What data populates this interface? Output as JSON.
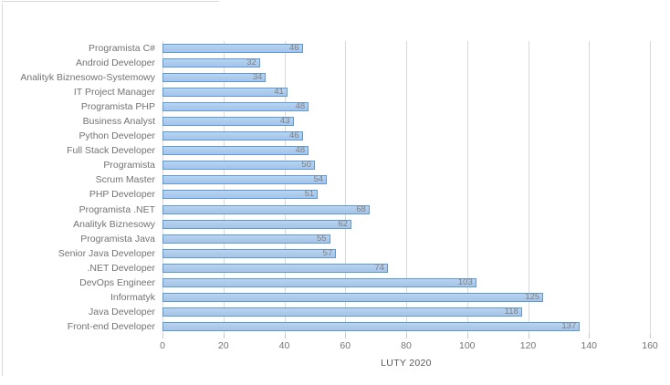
{
  "chart_data": {
    "type": "bar",
    "orientation": "horizontal",
    "title": "",
    "xlabel": "LUTY 2020",
    "ylabel": "",
    "xlim": [
      0,
      160
    ],
    "x_ticks": [
      0,
      20,
      40,
      60,
      80,
      100,
      120,
      140,
      160
    ],
    "grid": true,
    "data_labels_position": "inside-end",
    "categories_top_to_bottom": [
      "Programista C#",
      "Android Developer",
      "Analityk Biznesowo-Systemowy",
      "IT Project Manager",
      "Programista PHP",
      "Business Analyst",
      "Python Developer",
      "Full Stack Developer",
      "Programista",
      "Scrum Master",
      "PHP Developer",
      "Programista .NET",
      "Analityk Biznesowy",
      "Programista Java",
      "Senior Java Developer",
      ".NET Developer",
      "DevOps Engineer",
      "Informatyk",
      "Java Developer",
      "Front-end Developer"
    ],
    "values": [
      46,
      32,
      34,
      41,
      48,
      43,
      46,
      48,
      50,
      54,
      51,
      68,
      62,
      55,
      57,
      74,
      103,
      125,
      118,
      137
    ],
    "colors": {
      "bar_fill": "#aecbec",
      "bar_border": "#5b9bd5",
      "gridline": "#d9d9d9",
      "tick_mark": "#c9c9c9",
      "category_label_text": "#737373",
      "tick_label_text": "#737373",
      "value_label_text": "#7f7f7f",
      "axis_title_text": "#595959",
      "background": "#ffffff"
    }
  }
}
